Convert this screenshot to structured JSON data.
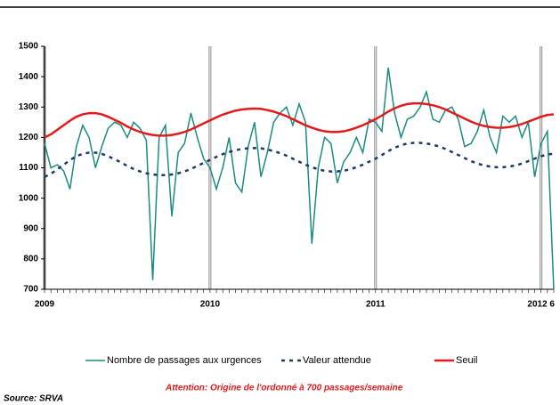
{
  "chart_data": {
    "type": "line",
    "categories": [
      "2009",
      null,
      null,
      null,
      null,
      null,
      null,
      null,
      null,
      null,
      null,
      null,
      null,
      null,
      null,
      null,
      null,
      null,
      null,
      null,
      null,
      null,
      null,
      null,
      null,
      null,
      "2010",
      null,
      null,
      null,
      null,
      null,
      null,
      null,
      null,
      null,
      null,
      null,
      null,
      null,
      null,
      null,
      null,
      null,
      null,
      null,
      null,
      null,
      null,
      null,
      null,
      null,
      "2011",
      null,
      null,
      null,
      null,
      null,
      null,
      null,
      null,
      null,
      null,
      null,
      null,
      null,
      null,
      null,
      null,
      null,
      null,
      null,
      null,
      null,
      null,
      null,
      null,
      null,
      "2012 6",
      null,
      null
    ],
    "series": [
      {
        "name": "Nombre de passages aux urgences",
        "color": "#1a8c84",
        "style": "solid",
        "values": [
          1180,
          1100,
          1110,
          1090,
          1030,
          1170,
          1240,
          1200,
          1100,
          1170,
          1230,
          1250,
          1240,
          1200,
          1250,
          1230,
          1190,
          730,
          1200,
          1240,
          940,
          1150,
          1180,
          1280,
          1200,
          1130,
          1100,
          1030,
          1100,
          1200,
          1050,
          1020,
          1170,
          1250,
          1070,
          1150,
          1250,
          1280,
          1300,
          1240,
          1310,
          1250,
          850,
          1100,
          1200,
          1180,
          1050,
          1120,
          1150,
          1200,
          1150,
          1260,
          1250,
          1220,
          1430,
          1280,
          1200,
          1260,
          1270,
          1300,
          1350,
          1260,
          1250,
          1290,
          1300,
          1260,
          1170,
          1180,
          1220,
          1290,
          1200,
          1150,
          1270,
          1250,
          1270,
          1200,
          1250,
          1070,
          1180,
          1220,
          700
        ]
      },
      {
        "name": "Valeur attendue",
        "color": "#1f3864",
        "style": "dotted",
        "values": [
          1070,
          1080,
          1095,
          1110,
          1125,
          1138,
          1146,
          1150,
          1150,
          1146,
          1138,
          1128,
          1118,
          1106,
          1096,
          1088,
          1082,
          1078,
          1076,
          1076,
          1078,
          1082,
          1088,
          1096,
          1106,
          1116,
          1126,
          1136,
          1145,
          1152,
          1158,
          1162,
          1164,
          1165,
          1164,
          1160,
          1155,
          1148,
          1140,
          1130,
          1120,
          1110,
          1102,
          1095,
          1090,
          1088,
          1088,
          1090,
          1095,
          1102,
          1110,
          1120,
          1130,
          1142,
          1155,
          1166,
          1174,
          1180,
          1182,
          1182,
          1180,
          1176,
          1170,
          1162,
          1152,
          1142,
          1132,
          1122,
          1114,
          1108,
          1104,
          1102,
          1102,
          1104,
          1108,
          1114,
          1122,
          1130,
          1138,
          1144,
          1146
        ]
      },
      {
        "name": "Seuil",
        "color": "#e31a1c",
        "style": "solid",
        "values": [
          1200,
          1210,
          1225,
          1240,
          1255,
          1268,
          1276,
          1280,
          1280,
          1276,
          1268,
          1258,
          1248,
          1236,
          1226,
          1218,
          1212,
          1208,
          1206,
          1206,
          1208,
          1212,
          1218,
          1226,
          1236,
          1246,
          1256,
          1266,
          1275,
          1282,
          1288,
          1292,
          1294,
          1295,
          1294,
          1290,
          1285,
          1278,
          1270,
          1260,
          1250,
          1240,
          1232,
          1225,
          1220,
          1218,
          1218,
          1220,
          1225,
          1232,
          1240,
          1250,
          1260,
          1272,
          1285,
          1296,
          1304,
          1310,
          1312,
          1312,
          1310,
          1306,
          1300,
          1292,
          1282,
          1272,
          1262,
          1252,
          1244,
          1238,
          1234,
          1232,
          1232,
          1234,
          1238,
          1244,
          1252,
          1260,
          1268,
          1274,
          1276
        ]
      }
    ],
    "ylim": [
      700,
      1500
    ],
    "yticks": [
      700,
      800,
      900,
      1000,
      1100,
      1200,
      1300,
      1400,
      1500
    ],
    "legend": "bottom",
    "note": "Attention: Origine de l'ordonné à 700 passages/semaine",
    "source": "Source: SRVA"
  }
}
